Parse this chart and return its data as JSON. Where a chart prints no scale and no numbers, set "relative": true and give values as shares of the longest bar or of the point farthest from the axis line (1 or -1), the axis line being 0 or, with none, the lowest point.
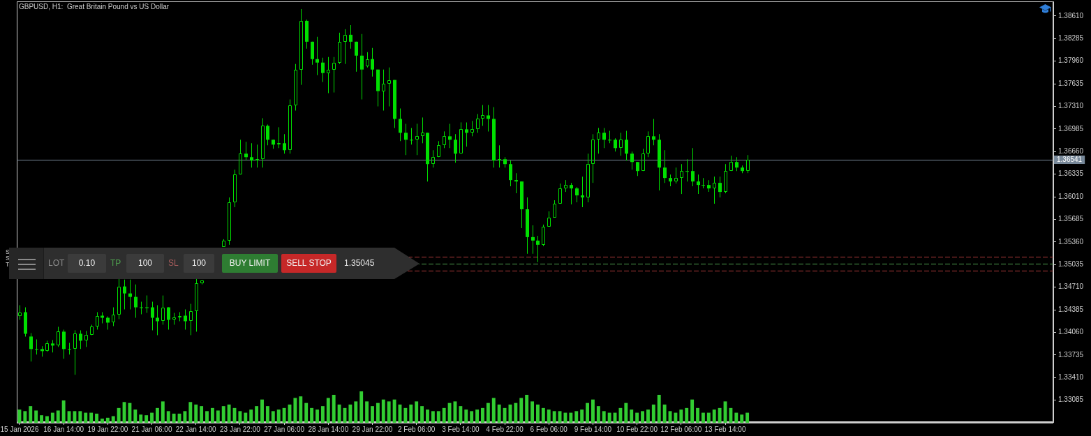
{
  "chart_data": [
    {
      "type": "candlestick",
      "title": "GBPUSD, H1:  Great Britain Pound vs US Dollar",
      "color": "#00e000",
      "categories": [
        "15 Jan 2026",
        null,
        null,
        null,
        null,
        null,
        null,
        null,
        "16 Jan 14:00",
        null,
        null,
        null,
        null,
        null,
        null,
        null,
        "19 Jan 22:00",
        null,
        null,
        null,
        null,
        null,
        null,
        null,
        "21 Jan 06:00",
        null,
        null,
        null,
        null,
        null,
        null,
        null,
        "22 Jan 14:00",
        null,
        null,
        null,
        null,
        null,
        null,
        null,
        "23 Jan 22:00",
        null,
        null,
        null,
        null,
        null,
        null,
        null,
        "27 Jan 06:00",
        null,
        null,
        null,
        null,
        null,
        null,
        null,
        "28 Jan 14:00",
        null,
        null,
        null,
        null,
        null,
        null,
        null,
        "29 Jan 22:00",
        null,
        null,
        null,
        null,
        null,
        null,
        null,
        "2 Feb 06:00",
        null,
        null,
        null,
        null,
        null,
        null,
        null,
        "3 Feb 14:00",
        null,
        null,
        null,
        null,
        null,
        null,
        null,
        "4 Feb 22:00",
        null,
        null,
        null,
        null,
        null,
        null,
        null,
        "6 Feb 06:00",
        null,
        null,
        null,
        null,
        null,
        null,
        null,
        "9 Feb 14:00",
        null,
        null,
        null,
        null,
        null,
        null,
        null,
        "10 Feb 22:00",
        null,
        null,
        null,
        null,
        null,
        null,
        null,
        "12 Feb 06:00",
        null,
        null,
        null,
        null,
        null,
        null,
        null,
        "13 Feb 14:00",
        null,
        null,
        null,
        null,
        null,
        null,
        null,
        null,
        null,
        null,
        null,
        null,
        null,
        null,
        null,
        null,
        null,
        null,
        null,
        null,
        null,
        null,
        null,
        null,
        null,
        null,
        null,
        null,
        null,
        null,
        null,
        null,
        null,
        null,
        null,
        null,
        null,
        null,
        null,
        null,
        null,
        null,
        null,
        null,
        null,
        null,
        null,
        null,
        null,
        null,
        null,
        null,
        null,
        null,
        null,
        null,
        null,
        null,
        null
      ],
      "ohlc": [
        [
          1.343,
          1.3445,
          1.3424,
          1.3435
        ],
        [
          1.3435,
          1.3442,
          1.34,
          1.3404
        ],
        [
          1.34,
          1.3405,
          1.3364,
          1.3382
        ],
        [
          1.3382,
          1.3396,
          1.3374,
          1.3382
        ],
        [
          1.3382,
          1.3386,
          1.3371,
          1.3379
        ],
        [
          1.3379,
          1.3394,
          1.3378,
          1.339
        ],
        [
          1.339,
          1.3395,
          1.3377,
          1.3387
        ],
        [
          1.3387,
          1.3414,
          1.3385,
          1.3407
        ],
        [
          1.3407,
          1.341,
          1.3368,
          1.3382
        ],
        [
          1.3382,
          1.3391,
          1.3374,
          1.3382
        ],
        [
          1.3382,
          1.3409,
          1.3345,
          1.3404
        ],
        [
          1.3404,
          1.3409,
          1.3382,
          1.3394
        ],
        [
          1.3394,
          1.3408,
          1.3385,
          1.3402
        ],
        [
          1.3402,
          1.3417,
          1.3402,
          1.3414
        ],
        [
          1.3414,
          1.3435,
          1.341,
          1.343
        ],
        [
          1.343,
          1.3435,
          1.3419,
          1.3427
        ],
        [
          1.3427,
          1.3429,
          1.341,
          1.342
        ],
        [
          1.342,
          1.3442,
          1.3415,
          1.3432
        ],
        [
          1.3432,
          1.3484,
          1.3425,
          1.3472
        ],
        [
          1.3472,
          1.3482,
          1.3439,
          1.3462
        ],
        [
          1.3462,
          1.3482,
          1.3439,
          1.3457
        ],
        [
          1.3457,
          1.3475,
          1.3427,
          1.3442
        ],
        [
          1.3442,
          1.345,
          1.3432,
          1.3442
        ],
        [
          1.3442,
          1.3459,
          1.3434,
          1.3442
        ],
        [
          1.3442,
          1.345,
          1.3409,
          1.3427
        ],
        [
          1.3427,
          1.3445,
          1.3402,
          1.3422
        ],
        [
          1.3422,
          1.3459,
          1.3417,
          1.3442
        ],
        [
          1.3442,
          1.3442,
          1.341,
          1.3424
        ],
        [
          1.3424,
          1.3434,
          1.3417,
          1.3427
        ],
        [
          1.3427,
          1.3435,
          1.3422,
          1.343
        ],
        [
          1.343,
          1.3439,
          1.341,
          1.3422
        ],
        [
          1.3422,
          1.3447,
          1.3402,
          1.3437
        ],
        [
          1.3437,
          1.3484,
          1.3407,
          1.3477
        ],
        [
          1.3477,
          1.3481,
          1.3475,
          1.3481
        ],
        null,
        null,
        null,
        [
          1.3529,
          1.354,
          1.3529,
          1.3538
        ],
        [
          1.3538,
          1.36,
          1.3532,
          1.3593
        ],
        [
          1.3593,
          1.364,
          1.3586,
          1.3633
        ],
        [
          1.3633,
          1.3683,
          1.3633,
          1.3663
        ],
        [
          1.3663,
          1.368,
          1.3653,
          1.3658
        ],
        [
          1.3658,
          1.3678,
          1.3643,
          1.3653
        ],
        [
          1.3653,
          1.3676,
          1.3643,
          1.3655
        ],
        [
          1.3655,
          1.3714,
          1.3643,
          1.3703
        ],
        [
          1.3703,
          1.3705,
          1.3675,
          1.3683
        ],
        [
          1.3683,
          1.3683,
          1.367,
          1.3676
        ],
        [
          1.3676,
          1.3701,
          1.3671,
          1.3678
        ],
        [
          1.3678,
          1.3691,
          1.3663,
          1.3668
        ],
        [
          1.3668,
          1.3741,
          1.3663,
          1.3733
        ],
        [
          1.3733,
          1.3792,
          1.3725,
          1.3784
        ],
        [
          1.3784,
          1.3871,
          1.3762,
          1.3854
        ],
        [
          1.3854,
          1.3856,
          1.3814,
          1.3824
        ],
        [
          1.3824,
          1.3824,
          1.3791,
          1.3799
        ],
        [
          1.3799,
          1.3831,
          1.3776,
          1.3794
        ],
        [
          1.3794,
          1.3801,
          1.3766,
          1.3779
        ],
        [
          1.3779,
          1.3802,
          1.375,
          1.3784
        ],
        [
          1.3784,
          1.3802,
          1.3751,
          1.3794
        ],
        [
          1.3794,
          1.3837,
          1.3792,
          1.3824
        ],
        [
          1.3824,
          1.3842,
          1.3792,
          1.3834
        ],
        [
          1.3834,
          1.3848,
          1.3814,
          1.3824
        ],
        [
          1.3824,
          1.3824,
          1.3781,
          1.3804
        ],
        [
          1.3804,
          1.3835,
          1.3741,
          1.3784
        ],
        [
          1.3789,
          1.3809,
          1.3787,
          1.3799
        ],
        [
          1.3799,
          1.3815,
          1.3774,
          1.3784
        ],
        [
          1.3784,
          1.3784,
          1.3731,
          1.3753
        ],
        [
          1.3753,
          1.3784,
          1.3725,
          1.3764
        ],
        [
          1.3764,
          1.3787,
          1.3731,
          1.3769
        ],
        [
          1.3769,
          1.3769,
          1.37,
          1.3713
        ],
        [
          1.3713,
          1.3728,
          1.3681,
          1.3693
        ],
        [
          1.3693,
          1.3706,
          1.3661,
          1.3683
        ],
        [
          1.3683,
          1.37,
          1.3676,
          1.3683
        ],
        [
          1.3683,
          1.3706,
          1.3661,
          1.3688
        ],
        [
          1.3688,
          1.3715,
          1.3678,
          1.3693
        ],
        [
          1.3693,
          1.3693,
          1.3623,
          1.3648
        ],
        [
          1.3648,
          1.3668,
          1.3643,
          1.3658
        ],
        [
          1.3658,
          1.3681,
          1.3658,
          1.3675
        ],
        [
          1.3675,
          1.3695,
          1.3671,
          1.3688
        ],
        [
          1.3688,
          1.3706,
          1.3671,
          1.3683
        ],
        [
          1.3683,
          1.3691,
          1.365,
          1.3663
        ],
        [
          1.3663,
          1.3708,
          1.3663,
          1.3698
        ],
        [
          1.3698,
          1.3708,
          1.3673,
          1.3693
        ],
        [
          1.3693,
          1.371,
          1.3688,
          1.3698
        ],
        [
          1.3698,
          1.372,
          1.3693,
          1.3713
        ],
        [
          1.3713,
          1.3733,
          1.3703,
          1.3718
        ],
        [
          1.3718,
          1.3733,
          1.3695,
          1.3713
        ],
        [
          1.3713,
          1.373,
          1.3643,
          1.3653
        ],
        [
          1.3653,
          1.3675,
          1.3643,
          1.3655
        ],
        [
          1.3655,
          1.3658,
          1.3643,
          1.3648
        ],
        [
          1.3648,
          1.3653,
          1.3616,
          1.3625
        ],
        [
          1.3625,
          1.3635,
          1.3606,
          1.3623
        ],
        [
          1.3623,
          1.3623,
          1.3556,
          1.3583
        ],
        [
          1.3583,
          1.36,
          1.3519,
          1.3543
        ],
        [
          1.3543,
          1.356,
          1.3519,
          1.3538
        ],
        [
          1.3538,
          1.3545,
          1.3507,
          1.3532
        ],
        [
          1.3532,
          1.3561,
          1.353,
          1.3558
        ],
        [
          1.3558,
          1.358,
          1.3558,
          1.3571
        ],
        [
          1.3571,
          1.3596,
          1.3571,
          1.3591
        ],
        [
          1.3591,
          1.362,
          1.3591,
          1.3613
        ],
        [
          1.3613,
          1.3625,
          1.3608,
          1.3618
        ],
        [
          1.3618,
          1.3621,
          1.359,
          1.3613
        ],
        [
          1.3613,
          1.3615,
          1.3593,
          1.3603
        ],
        [
          1.3603,
          1.363,
          1.3586,
          1.36
        ],
        [
          1.36,
          1.3663,
          1.3593,
          1.3648
        ],
        [
          1.3648,
          1.3691,
          1.3621,
          1.3683
        ],
        [
          1.3683,
          1.37,
          1.3663,
          1.3693
        ],
        [
          1.3693,
          1.37,
          1.3671,
          1.3683
        ],
        [
          1.3683,
          1.3696,
          1.3678,
          1.3683
        ],
        [
          1.3683,
          1.3685,
          1.3666,
          1.3671
        ],
        [
          1.3671,
          1.3693,
          1.366,
          1.3683
        ],
        [
          1.3683,
          1.3696,
          1.3653,
          1.3663
        ],
        [
          1.3663,
          1.3666,
          1.364,
          1.3651
        ],
        [
          1.3651,
          1.3651,
          1.3631,
          1.3638
        ],
        [
          1.3638,
          1.367,
          1.3638,
          1.3663
        ],
        [
          1.3663,
          1.3695,
          1.3658,
          1.3688
        ],
        [
          1.3688,
          1.3713,
          1.3675,
          1.3683
        ],
        [
          1.3683,
          1.3691,
          1.361,
          1.3643
        ],
        [
          1.3643,
          1.3668,
          1.3621,
          1.3628
        ],
        [
          1.3628,
          1.3633,
          1.3616,
          1.3623
        ],
        [
          1.3623,
          1.3643,
          1.362,
          1.3628
        ],
        [
          1.3628,
          1.3648,
          1.3605,
          1.3638
        ],
        [
          1.3638,
          1.3655,
          1.3623,
          1.3638
        ],
        [
          1.3638,
          1.3671,
          1.3616,
          1.3623
        ],
        [
          1.3623,
          1.3633,
          1.3605,
          1.3618
        ],
        [
          1.3618,
          1.3628,
          1.3613,
          1.3618
        ],
        [
          1.3618,
          1.3625,
          1.3608,
          1.3613
        ],
        [
          1.3613,
          1.363,
          1.3591,
          1.3621
        ],
        [
          1.3621,
          1.363,
          1.36,
          1.3608
        ],
        [
          1.3608,
          1.3648,
          1.3606,
          1.3638
        ],
        [
          1.3638,
          1.366,
          1.3638,
          1.3651
        ],
        [
          1.3651,
          1.3658,
          1.3638,
          1.3643
        ],
        [
          1.3643,
          1.3646,
          1.3635,
          1.3638
        ],
        [
          1.3638,
          1.3661,
          1.3635,
          1.3654
        ],
        null,
        null,
        null,
        null,
        null,
        null,
        null,
        null,
        null,
        null,
        null,
        null,
        null,
        null,
        null,
        null,
        null,
        null,
        null,
        null,
        null,
        null,
        null,
        null,
        null,
        null,
        null,
        null,
        null,
        null,
        null,
        null,
        null,
        null,
        null,
        null,
        null,
        null,
        null,
        null,
        null,
        null,
        null,
        null,
        null,
        null,
        null,
        null,
        null,
        null,
        null,
        null,
        null,
        null,
        null
      ],
      "ylim": [
        1.3277,
        1.3882
      ],
      "yticks": [
        1.33085,
        {
          "value": 1.3341,
          "label": "1.33410"
        },
        1.33735,
        {
          "value": 1.3406,
          "label": "1.34060"
        },
        1.34385,
        {
          "value": 1.3471,
          "label": "1.34710"
        },
        1.35035,
        {
          "value": 1.3536,
          "label": "1.35360"
        },
        1.35685,
        {
          "value": 1.3601,
          "label": "1.36010"
        },
        1.36335,
        {
          "value": 1.3666,
          "label": "1.36660"
        },
        1.36985,
        {
          "value": 1.3731,
          "label": "1.37310"
        },
        1.37635,
        {
          "value": 1.3796,
          "label": "1.37960"
        },
        1.38285,
        {
          "value": 1.3861,
          "label": "1.38610"
        }
      ],
      "ref_lines": [
        {
          "axis": "y",
          "value": 1.36541,
          "label": "1.36541",
          "color": "#778899",
          "line_style": "solid"
        },
        {
          "axis": "y",
          "value": 1.35145,
          "color": "#b23b3b",
          "line_style": "dashed"
        },
        {
          "axis": "y",
          "value": 1.35045,
          "color": "#4fa34f",
          "line_style": "dashed"
        },
        {
          "axis": "y",
          "value": 1.34945,
          "color": "#b23b3b",
          "line_style": "dashed"
        }
      ],
      "annotations": [
        "S",
        "S",
        "T",
        "LOT",
        "0.10",
        "TP",
        "100",
        "SL",
        "100",
        "BUY LIMIT",
        "SELL STOP",
        "1.35045"
      ]
    },
    {
      "type": "bar",
      "relative": true,
      "tick_labels": false,
      "color": "#32cd32",
      "categories": [
        null,
        null,
        null,
        null,
        null,
        null,
        null,
        null,
        null,
        null,
        null,
        null,
        null,
        null,
        null,
        null,
        null,
        null,
        null,
        null,
        null,
        null,
        null,
        null,
        null,
        null,
        null,
        null,
        null,
        null,
        null,
        null,
        null,
        null,
        null,
        null,
        null,
        null,
        null,
        null,
        null,
        null,
        null,
        null,
        null,
        null,
        null,
        null,
        null,
        null,
        null,
        null,
        null,
        null,
        null,
        null,
        null,
        null,
        null,
        null,
        null,
        null,
        null,
        null,
        null,
        null,
        null,
        null,
        null,
        null,
        null,
        null,
        null,
        null,
        null,
        null,
        null,
        null,
        null,
        null,
        null,
        null,
        null,
        null,
        null,
        null,
        null,
        null,
        null,
        null,
        null,
        null,
        null,
        null,
        null,
        null,
        null,
        null,
        null,
        null,
        null,
        null,
        null,
        null,
        null,
        null,
        null,
        null,
        null,
        null,
        null,
        null,
        null,
        null,
        null,
        null,
        null,
        null,
        null,
        null,
        null,
        null,
        null,
        null,
        null,
        null,
        null,
        null,
        null,
        null,
        null,
        null,
        null,
        null,
        null,
        null,
        null,
        null,
        null,
        null,
        null,
        null,
        null,
        null,
        null,
        null,
        null,
        null,
        null,
        null,
        null,
        null,
        null,
        null,
        null,
        null,
        null,
        null,
        null,
        null,
        null,
        null,
        null,
        null,
        null,
        null,
        null,
        null,
        null,
        null,
        null,
        null,
        null,
        null,
        null,
        null,
        null,
        null,
        null,
        null,
        null,
        null,
        null,
        null,
        null,
        null,
        null,
        null
      ],
      "values": [
        0.42,
        0.37,
        0.53,
        0.39,
        0.24,
        0.21,
        0.32,
        0.39,
        0.71,
        0.37,
        0.37,
        0.37,
        0.32,
        0.32,
        0.29,
        0.13,
        0.16,
        0.21,
        0.47,
        0.66,
        0.63,
        0.42,
        0.26,
        0.24,
        0.32,
        0.47,
        0.68,
        0.37,
        0.29,
        0.29,
        0.37,
        0.66,
        0.58,
        0.53,
        0.37,
        0.47,
        0.39,
        0.53,
        0.58,
        0.47,
        0.37,
        0.32,
        0.42,
        0.53,
        0.74,
        0.53,
        0.37,
        0.42,
        0.47,
        0.58,
        0.79,
        0.84,
        0.63,
        0.47,
        0.42,
        0.53,
        0.79,
        0.89,
        0.58,
        0.47,
        0.58,
        0.68,
        1,
        0.68,
        0.53,
        0.63,
        0.74,
        0.68,
        0.74,
        0.58,
        0.47,
        0.58,
        0.68,
        0.53,
        0.42,
        0.37,
        0.37,
        0.47,
        0.63,
        0.68,
        0.53,
        0.42,
        0.37,
        0.42,
        0.47,
        0.63,
        0.79,
        0.58,
        0.47,
        0.58,
        0.63,
        0.79,
        0.89,
        0.68,
        0.58,
        0.47,
        0.42,
        0.37,
        0.37,
        0.32,
        0.32,
        0.37,
        0.42,
        0.63,
        0.74,
        0.53,
        0.37,
        0.32,
        0.32,
        0.47,
        0.63,
        0.42,
        0.32,
        0.37,
        0.42,
        0.58,
        0.89,
        0.58,
        0.37,
        0.32,
        0.42,
        0.47,
        0.74,
        0.47,
        0.32,
        0.32,
        0.42,
        0.47,
        0.68,
        0.47,
        0.32,
        0.26,
        0.32,
        null,
        null,
        null,
        null,
        null,
        null,
        null,
        null,
        null,
        null,
        null,
        null,
        null,
        null,
        null,
        null,
        null,
        null,
        null,
        null,
        null,
        null,
        null,
        null,
        null,
        null,
        null,
        null,
        null,
        null,
        null,
        null,
        null,
        null,
        null,
        null,
        null,
        null,
        null,
        null,
        null,
        null,
        null,
        null,
        null,
        null,
        null,
        null,
        null,
        null,
        null,
        null,
        null,
        null,
        null
      ]
    }
  ]
}
